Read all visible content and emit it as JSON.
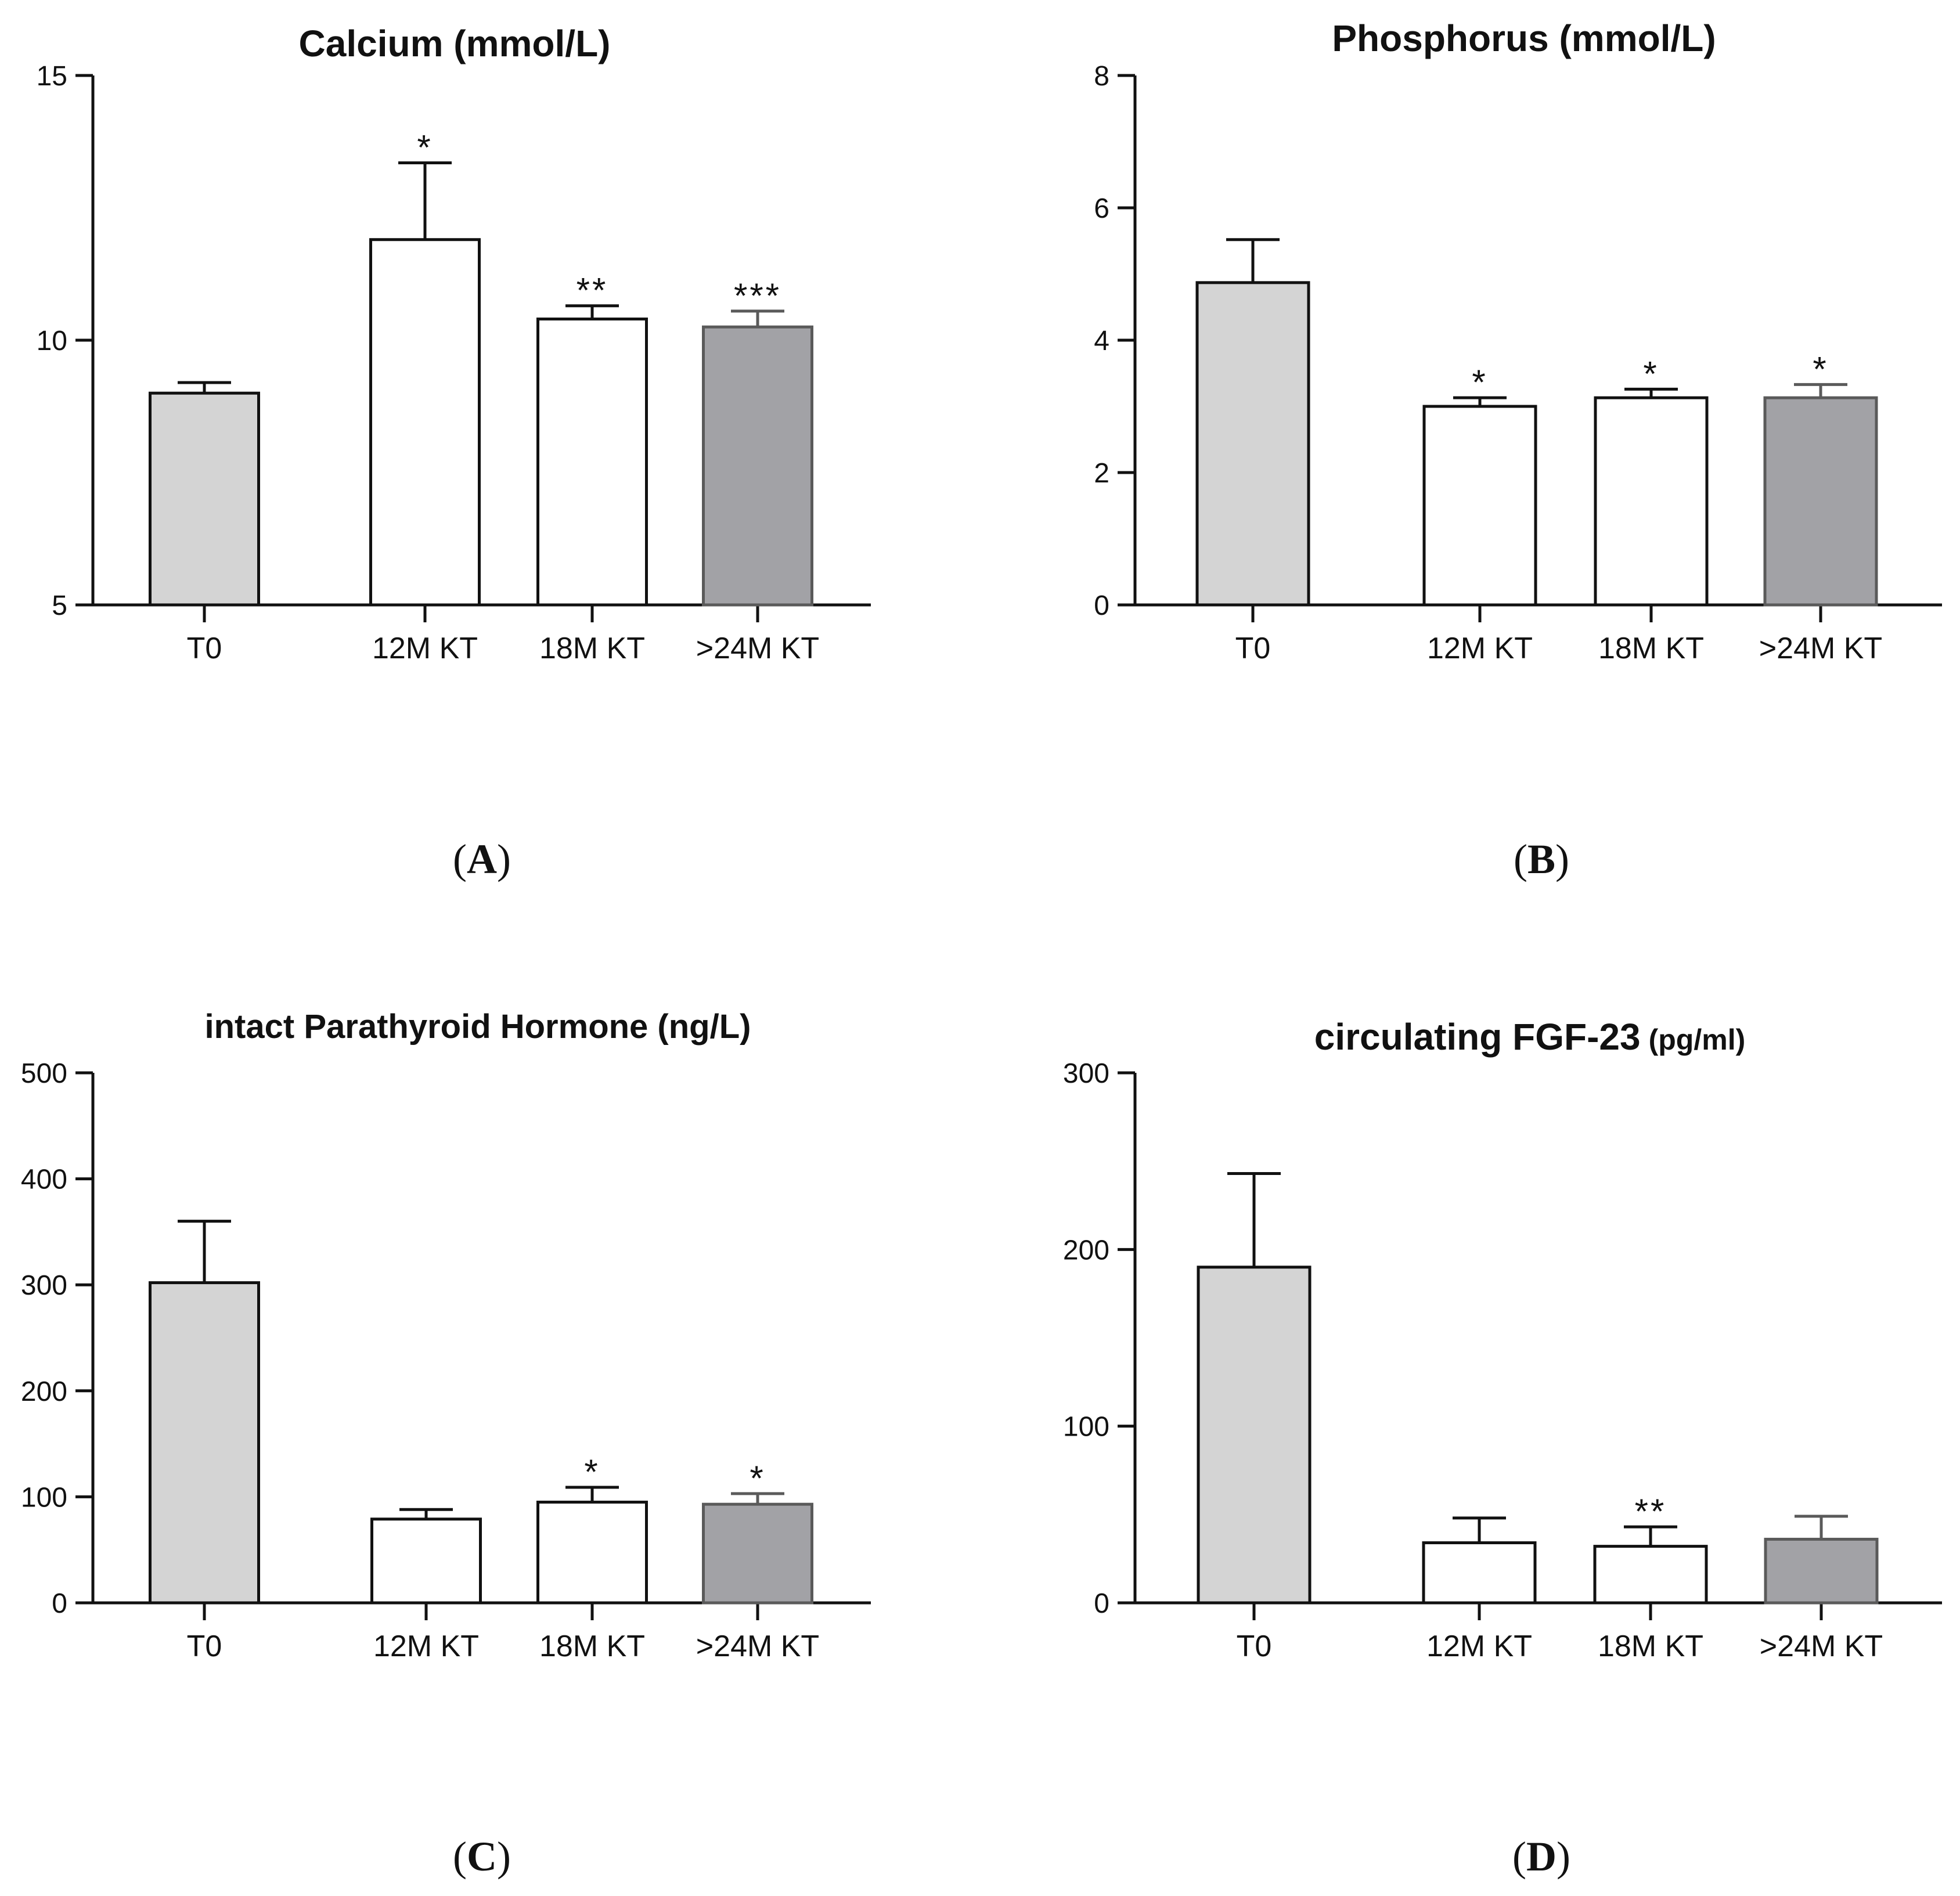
{
  "colors": {
    "baseline_fill": "#d4d4d4",
    "post_fill": "#ffffff",
    "late_fill": "#a2a2a6",
    "stroke": "#111111",
    "late_stroke": "#5a5a5a"
  },
  "chart_data": [
    {
      "type": "bar",
      "panel_label": "A",
      "title": "Calcium (mmol/L)",
      "categories": [
        "T0",
        "12M KT",
        "18M KT",
        ">24M KT"
      ],
      "values": [
        9.0,
        11.9,
        10.4,
        10.25
      ],
      "errors": [
        0.2,
        1.45,
        0.25,
        0.3
      ],
      "significance": [
        "",
        "*",
        "**",
        "***"
      ],
      "ylim": [
        5,
        15
      ],
      "yticks": [
        5,
        10,
        15
      ],
      "xlabel": "",
      "ylabel": ""
    },
    {
      "type": "bar",
      "panel_label": "B",
      "title": "Phosphorus (mmol/L)",
      "categories": [
        "T0",
        "12M KT",
        "18M KT",
        ">24M KT"
      ],
      "values": [
        4.87,
        3.0,
        3.13,
        3.13
      ],
      "errors": [
        0.65,
        0.13,
        0.13,
        0.2
      ],
      "significance": [
        "",
        "*",
        "*",
        "*"
      ],
      "ylim": [
        0,
        8
      ],
      "yticks": [
        0,
        2,
        4,
        6,
        8
      ],
      "xlabel": "",
      "ylabel": ""
    },
    {
      "type": "bar",
      "panel_label": "C",
      "title": "intact Parathyroid Hormone (ng/L)",
      "categories": [
        "T0",
        "12M KT",
        "18M KT",
        ">24M KT"
      ],
      "values": [
        302,
        79,
        95,
        93
      ],
      "errors": [
        58,
        9,
        14,
        10
      ],
      "significance": [
        "",
        "",
        "*",
        "*"
      ],
      "ylim": [
        0,
        500
      ],
      "yticks": [
        0,
        100,
        200,
        300,
        400,
        500
      ],
      "xlabel": "",
      "ylabel": ""
    },
    {
      "type": "bar",
      "panel_label": "D",
      "title": "circulating FGF-23",
      "title_unit": "(pg/ml)",
      "categories": [
        "T0",
        "12M KT",
        "18M KT",
        ">24M KT"
      ],
      "values": [
        190,
        34,
        32,
        36
      ],
      "errors": [
        53,
        14,
        11,
        13
      ],
      "significance": [
        "",
        "",
        "**",
        ""
      ],
      "ylim": [
        0,
        300
      ],
      "yticks": [
        0,
        100,
        200,
        300
      ],
      "xlabel": "",
      "ylabel": ""
    }
  ]
}
